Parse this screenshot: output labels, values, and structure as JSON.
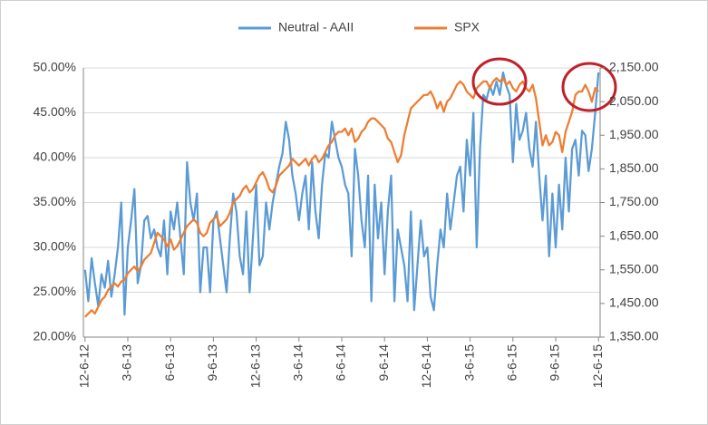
{
  "chart_data": {
    "type": "line",
    "legend": "top",
    "grid": true,
    "categories": [
      "12-6-12",
      null,
      null,
      null,
      null,
      null,
      null,
      null,
      null,
      null,
      null,
      null,
      null,
      "3-6-13",
      null,
      null,
      null,
      null,
      null,
      null,
      null,
      null,
      null,
      null,
      null,
      null,
      "6-6-13",
      null,
      null,
      null,
      null,
      null,
      null,
      null,
      null,
      null,
      null,
      null,
      null,
      "9-6-13",
      null,
      null,
      null,
      null,
      null,
      null,
      null,
      null,
      null,
      null,
      null,
      null,
      "12-6-13",
      null,
      null,
      null,
      null,
      null,
      null,
      null,
      null,
      null,
      null,
      null,
      null,
      "3-6-14",
      null,
      null,
      null,
      null,
      null,
      null,
      null,
      null,
      null,
      null,
      null,
      null,
      "6-6-14",
      null,
      null,
      null,
      null,
      null,
      null,
      null,
      null,
      null,
      null,
      null,
      null,
      "9-6-14",
      null,
      null,
      null,
      null,
      null,
      null,
      null,
      null,
      null,
      null,
      null,
      null,
      "12-6-14",
      null,
      null,
      null,
      null,
      null,
      null,
      null,
      null,
      null,
      null,
      null,
      null,
      "3-6-15",
      null,
      null,
      null,
      null,
      null,
      null,
      null,
      null,
      null,
      null,
      null,
      null,
      "6-6-15",
      null,
      null,
      null,
      null,
      null,
      null,
      null,
      null,
      null,
      null,
      null,
      null,
      "9-6-15",
      null,
      null,
      null,
      null,
      null,
      null,
      null,
      null,
      null,
      null,
      null,
      null,
      "12-6-15"
    ],
    "series": [
      {
        "name": "Neutral - AAII",
        "color": "#5b9bd5",
        "values": [
          27.5,
          24,
          28.8,
          26,
          23.5,
          27,
          25.5,
          28.5,
          24.5,
          27,
          30,
          35,
          22.5,
          30,
          33,
          36.5,
          26,
          28,
          33,
          33.5,
          31,
          32,
          30,
          29,
          33,
          27,
          34,
          32,
          35,
          31,
          27,
          39.5,
          35,
          33,
          36,
          25,
          30,
          30,
          25,
          33,
          34,
          31,
          28,
          25,
          31,
          36,
          34,
          29,
          27,
          34,
          25,
          31,
          37,
          28,
          29,
          35,
          32,
          35,
          37,
          39,
          40.5,
          44,
          42,
          38,
          36,
          33,
          36,
          38,
          32,
          39.5,
          34,
          31,
          37,
          40.5,
          40,
          44,
          42,
          40,
          39,
          37,
          36,
          29,
          41,
          38,
          33,
          30,
          38,
          24,
          37,
          31,
          35,
          27,
          34,
          38,
          24,
          32,
          30,
          28,
          24,
          34,
          23,
          28,
          33,
          29,
          30,
          24.5,
          23,
          28,
          32,
          30,
          36,
          32,
          35,
          38,
          39,
          34,
          42,
          38,
          45,
          30,
          41,
          47,
          46.5,
          48,
          47,
          48.5,
          47,
          49.5,
          48,
          47,
          39.5,
          46,
          42,
          43,
          45,
          41,
          39,
          44,
          38,
          33,
          38,
          29,
          36,
          30,
          37,
          32,
          40,
          34,
          41,
          42,
          38,
          43,
          42.5,
          38.5,
          41,
          45,
          49.5
        ]
      },
      {
        "name": "SPX",
        "color": "#ed7d31",
        "axis": "y2",
        "values": [
          1410,
          1420,
          1430,
          1420,
          1440,
          1460,
          1470,
          1490,
          1500,
          1510,
          1500,
          1515,
          1520,
          1540,
          1550,
          1560,
          1545,
          1560,
          1580,
          1590,
          1600,
          1630,
          1660,
          1650,
          1640,
          1620,
          1640,
          1610,
          1620,
          1640,
          1660,
          1680,
          1690,
          1700,
          1690,
          1660,
          1650,
          1660,
          1690,
          1700,
          1710,
          1680,
          1690,
          1700,
          1720,
          1750,
          1760,
          1770,
          1790,
          1800,
          1780,
          1790,
          1810,
          1830,
          1840,
          1820,
          1790,
          1780,
          1800,
          1830,
          1840,
          1850,
          1860,
          1880,
          1870,
          1860,
          1870,
          1880,
          1860,
          1880,
          1890,
          1870,
          1880,
          1900,
          1920,
          1930,
          1950,
          1960,
          1960,
          1970,
          1950,
          1970,
          1930,
          1940,
          1960,
          1970,
          1990,
          2000,
          2000,
          1990,
          1980,
          1970,
          1940,
          1930,
          1900,
          1870,
          1890,
          1950,
          1990,
          2030,
          2040,
          2050,
          2060,
          2070,
          2070,
          2080,
          2060,
          2030,
          2050,
          2020,
          2050,
          2060,
          2080,
          2100,
          2110,
          2100,
          2080,
          2070,
          2060,
          2090,
          2100,
          2110,
          2110,
          2090,
          2110,
          2120,
          2110,
          2120,
          2100,
          2110,
          2090,
          2080,
          2100,
          2110,
          2090,
          2080,
          2100,
          2060,
          1990,
          1920,
          1950,
          1920,
          1930,
          1960,
          1950,
          1900,
          1960,
          1990,
          2020,
          2070,
          2080,
          2080,
          2100,
          2080,
          2050,
          2090,
          2080
        ]
      }
    ],
    "ylim": [
      20,
      50
    ],
    "yticks": [
      {
        "value": 20,
        "label": "20.00%"
      },
      {
        "value": 25,
        "label": "25.00%"
      },
      {
        "value": 30,
        "label": "30.00%"
      },
      {
        "value": 35,
        "label": "35.00%"
      },
      {
        "value": 40,
        "label": "40.00%"
      },
      {
        "value": 45,
        "label": "45.00%"
      },
      {
        "value": 50,
        "label": "50.00%"
      }
    ],
    "y2lim": [
      1350,
      2150
    ],
    "y2ticks": [
      {
        "value": 1350,
        "label": "1,350.00"
      },
      {
        "value": 1450,
        "label": "1,450.00"
      },
      {
        "value": 1550,
        "label": "1,550.00"
      },
      {
        "value": 1650,
        "label": "1,650.00"
      },
      {
        "value": 1750,
        "label": "1,750.00"
      },
      {
        "value": 1850,
        "label": "1,850.00"
      },
      {
        "value": 1950,
        "label": "1,950.00"
      },
      {
        "value": 2050,
        "label": "2,050.00"
      },
      {
        "value": 2150,
        "label": "2,150.00"
      }
    ]
  }
}
